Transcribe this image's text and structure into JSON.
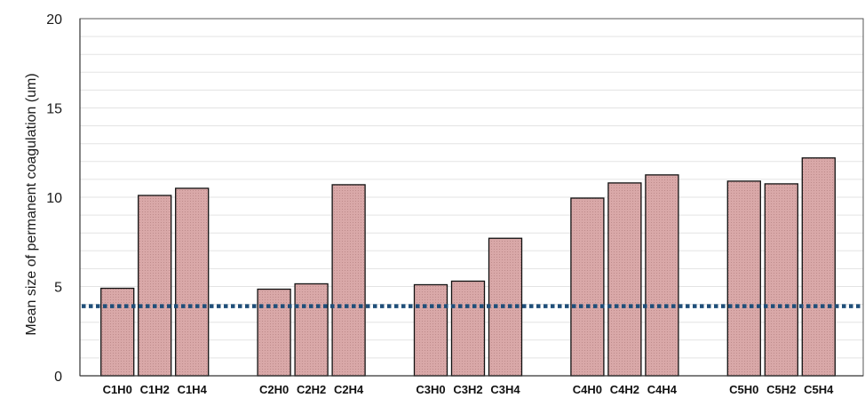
{
  "chart_data": {
    "type": "bar",
    "title": "",
    "xlabel": "",
    "ylabel": "Mean size of permanent coagulation  (um)",
    "ylim": [
      0,
      20
    ],
    "yticks": [
      0,
      5,
      10,
      15,
      20
    ],
    "grid": true,
    "minor_grid_step": 1,
    "groups": [
      {
        "labels": [
          "C1H0",
          "C1H2",
          "C1H4"
        ],
        "values": [
          4.9,
          10.1,
          10.5
        ]
      },
      {
        "labels": [
          "C2H0",
          "C2H2",
          "C2H4"
        ],
        "values": [
          4.85,
          5.15,
          10.7
        ]
      },
      {
        "labels": [
          "C3H0",
          "C3H2",
          "C3H4"
        ],
        "values": [
          5.1,
          5.3,
          7.7
        ]
      },
      {
        "labels": [
          "C4H0",
          "C4H2",
          "C4H4"
        ],
        "values": [
          9.95,
          10.8,
          11.25
        ]
      },
      {
        "labels": [
          "C5H0",
          "C5H2",
          "C5H4"
        ],
        "values": [
          10.9,
          10.75,
          12.2
        ]
      }
    ],
    "reference_line": {
      "y": 3.9,
      "style": "dotted"
    },
    "colors": {
      "bar_fill": "#d9a8a8",
      "bar_stroke": "#111111",
      "reference_line": "#1f4e79",
      "grid": "#e3e3e3",
      "axis": "#555555"
    }
  }
}
